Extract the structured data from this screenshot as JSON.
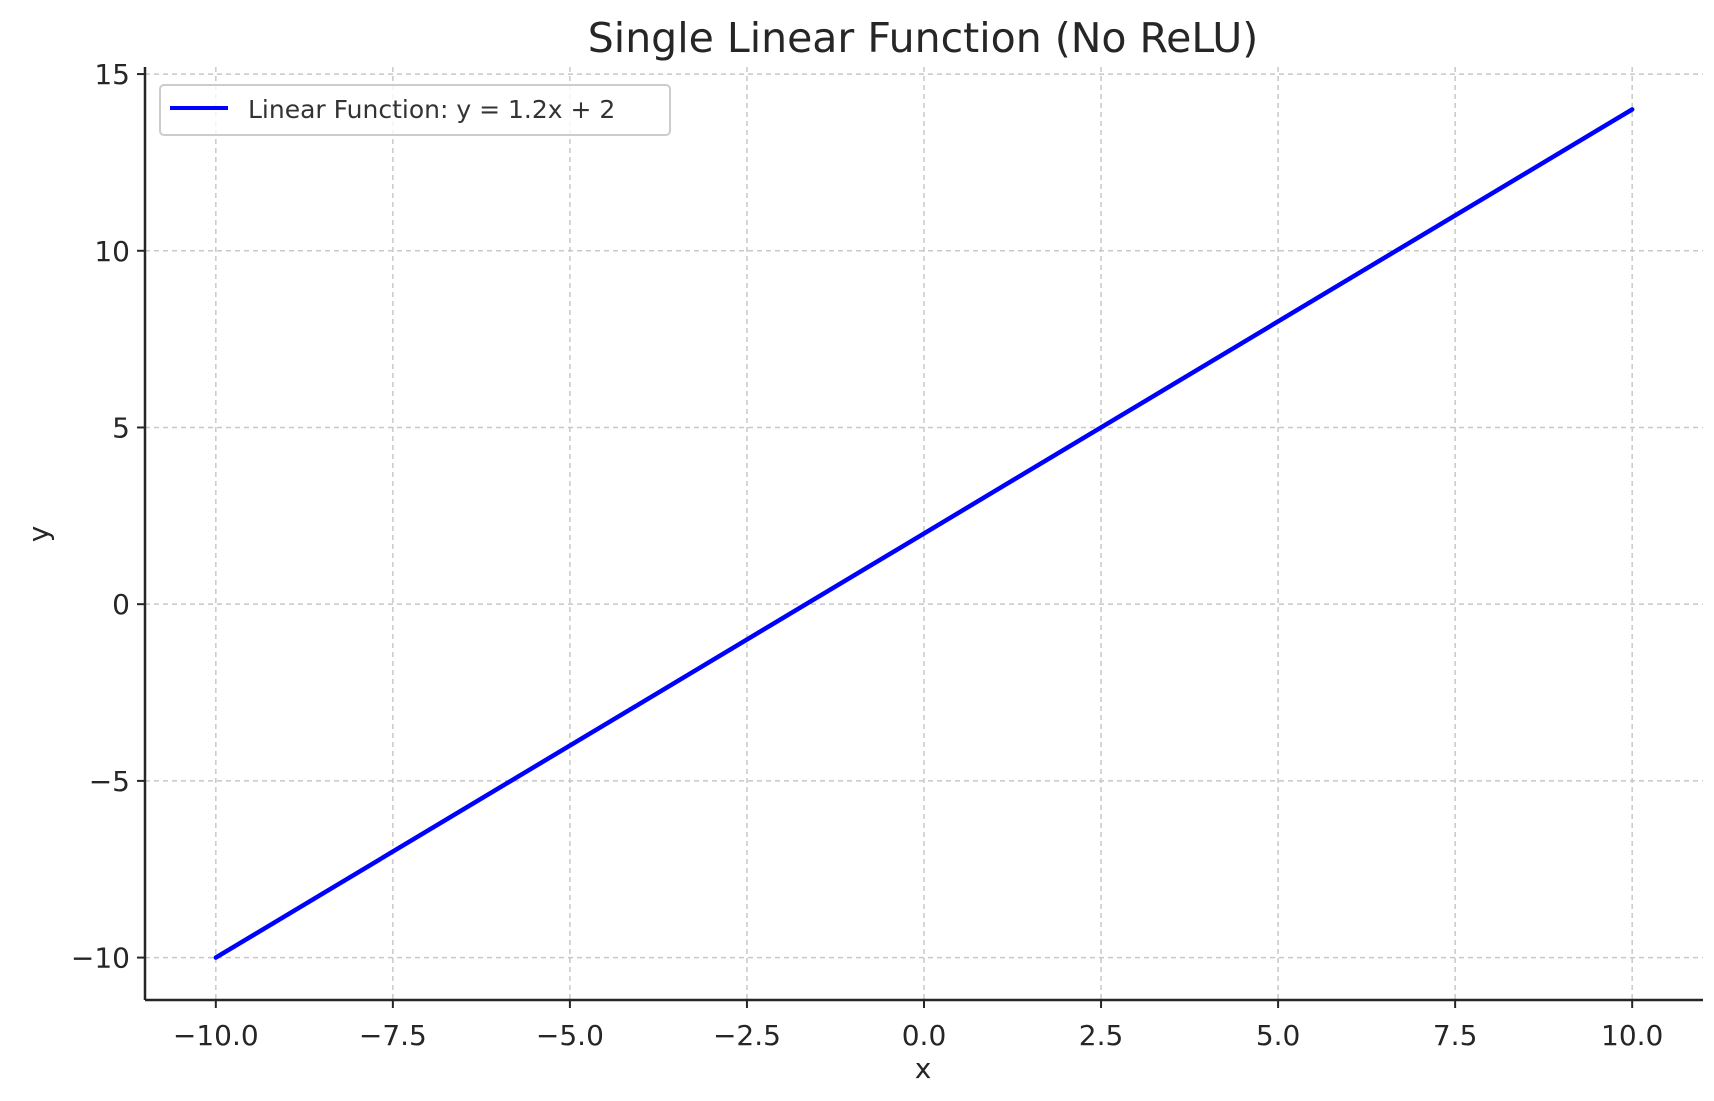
{
  "chart_data": {
    "type": "line",
    "title": "Single Linear Function (No ReLU)",
    "xlabel": "x",
    "ylabel": "y",
    "xlim": [
      -11,
      11
    ],
    "ylim": [
      -11.2,
      15.2
    ],
    "x_ticks": [
      -10.0,
      -7.5,
      -5.0,
      -2.5,
      0.0,
      2.5,
      5.0,
      7.5,
      10.0
    ],
    "x_tick_labels": [
      "−10.0",
      "−7.5",
      "−5.0",
      "−2.5",
      "0.0",
      "2.5",
      "5.0",
      "7.5",
      "10.0"
    ],
    "y_ticks": [
      -10,
      -5,
      0,
      5,
      10,
      15
    ],
    "y_tick_labels": [
      "−10",
      "−5",
      "0",
      "5",
      "10",
      "15"
    ],
    "grid": true,
    "legend_position": "top-left",
    "series": [
      {
        "name": "Linear Function: y = 1.2x + 2",
        "color": "#0000ff",
        "x": [
          -10,
          10
        ],
        "y": [
          -10,
          14
        ]
      }
    ]
  }
}
